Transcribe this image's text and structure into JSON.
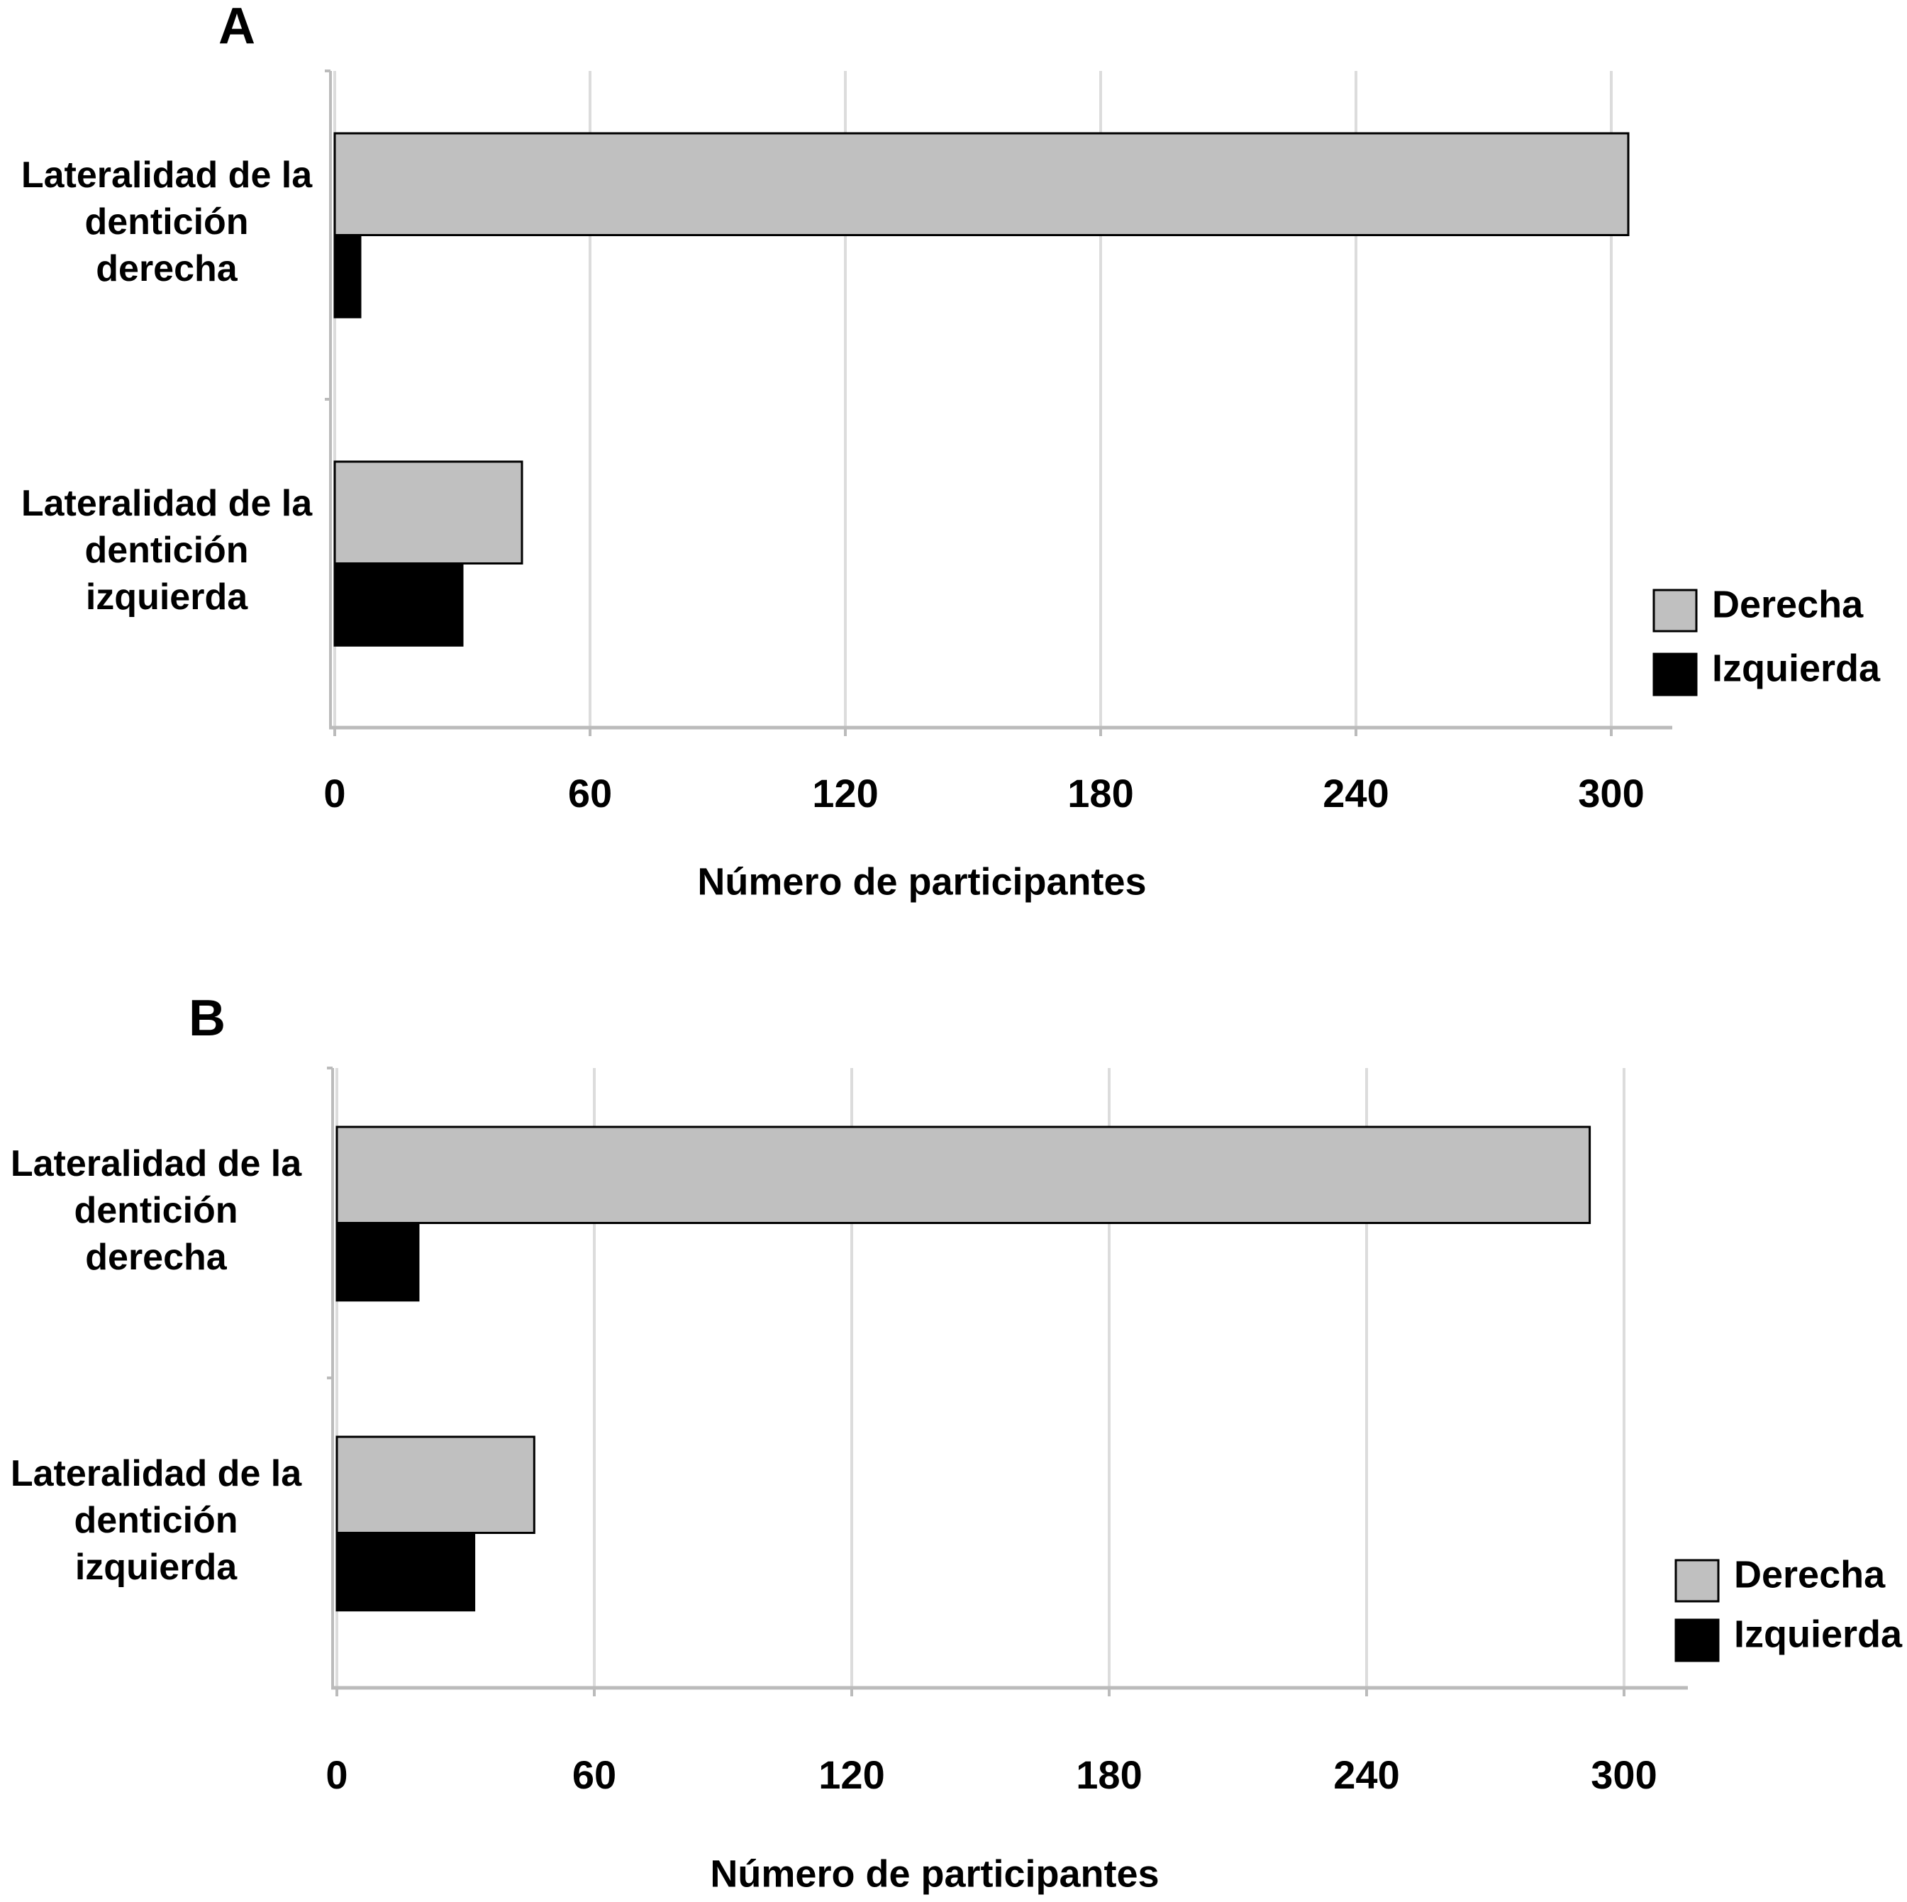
{
  "chart_data": [
    {
      "type": "bar",
      "orientation": "horizontal",
      "title": "A",
      "xlabel": "Número de participantes",
      "categories": [
        "Lateralidad de la dentición derecha",
        "Lateralidad de la dentición izquierda"
      ],
      "series": [
        {
          "name": "Derecha",
          "color": "#c0c0c0",
          "values": [
            304,
            44
          ]
        },
        {
          "name": "Izquierda",
          "color": "#000000",
          "values": [
            6,
            30
          ]
        }
      ],
      "xlim": [
        0,
        314
      ],
      "xticks": [
        0,
        60,
        120,
        180,
        240,
        300
      ],
      "grid": true,
      "legend": "right"
    },
    {
      "type": "bar",
      "orientation": "horizontal",
      "title": "B",
      "xlabel": "Número de participantes",
      "categories": [
        "Lateralidad de la dentición derecha",
        "Lateralidad de la dentición izquierda"
      ],
      "series": [
        {
          "name": "Derecha",
          "color": "#c0c0c0",
          "values": [
            292,
            46
          ]
        },
        {
          "name": "Izquierda",
          "color": "#000000",
          "values": [
            19,
            32
          ]
        }
      ],
      "xlim": [
        0,
        314
      ],
      "xticks": [
        0,
        60,
        120,
        180,
        240,
        300
      ],
      "grid": true,
      "legend": "right"
    }
  ]
}
